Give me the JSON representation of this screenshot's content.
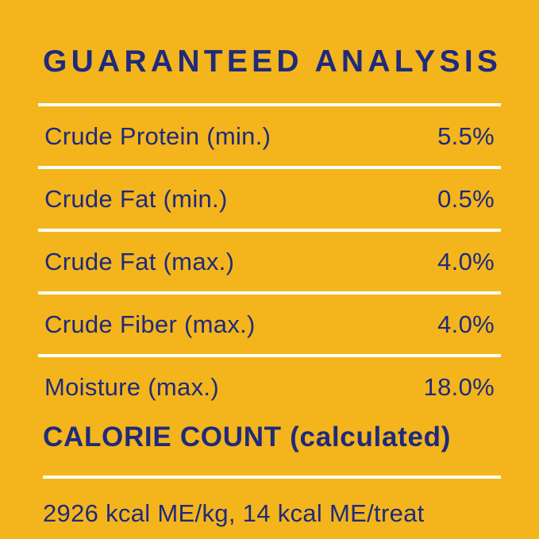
{
  "label": {
    "title": "GUARANTEED ANALYSIS",
    "rows": [
      {
        "name": "Crude Protein (min.)",
        "value": "5.5%"
      },
      {
        "name": "Crude Fat (min.)",
        "value": "0.5%"
      },
      {
        "name": "Crude Fat (max.)",
        "value": "4.0%"
      },
      {
        "name": "Crude Fiber (max.)",
        "value": "4.0%"
      },
      {
        "name": "Moisture (max.)",
        "value": "18.0%"
      }
    ],
    "calorie_heading": "CALORIE COUNT (calculated)",
    "calorie_text": "2926 kcal ME/kg, 14 kcal ME/treat",
    "colors": {
      "background": "#F3B51B",
      "text": "#1F2A7D",
      "divider": "#FFFFFF"
    }
  }
}
